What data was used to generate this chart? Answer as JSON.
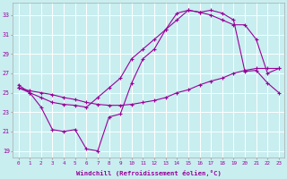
{
  "xlabel": "Windchill (Refroidissement éolien,°C)",
  "background_color": "#c8eef0",
  "grid_color": "#ffffff",
  "line_color": "#990099",
  "xlim": [
    -0.5,
    23.5
  ],
  "ylim": [
    18.3,
    34.3
  ],
  "xticks": [
    0,
    1,
    2,
    3,
    4,
    5,
    6,
    7,
    8,
    9,
    10,
    11,
    12,
    13,
    14,
    15,
    16,
    17,
    18,
    19,
    20,
    21,
    22,
    23
  ],
  "yticks": [
    19,
    21,
    23,
    25,
    27,
    29,
    31,
    33
  ],
  "line1_x": [
    0,
    1,
    2,
    3,
    4,
    5,
    6,
    7,
    8,
    9,
    10,
    11,
    12,
    13,
    14,
    15,
    16,
    17,
    18,
    19,
    20,
    21,
    22,
    23
  ],
  "line1_y": [
    25.8,
    25.0,
    23.5,
    21.2,
    21.0,
    21.2,
    19.2,
    19.0,
    22.5,
    22.8,
    26.0,
    28.5,
    29.5,
    31.5,
    33.2,
    33.5,
    33.3,
    33.0,
    32.5,
    32.0,
    32.0,
    30.5,
    27.0,
    27.5
  ],
  "line2_x": [
    0,
    1,
    2,
    3,
    4,
    5,
    6,
    7,
    8,
    9,
    10,
    11,
    12,
    13,
    14,
    15,
    16,
    17,
    18,
    19,
    20,
    21,
    22,
    23
  ],
  "line2_y": [
    25.5,
    25.0,
    24.5,
    24.0,
    23.8,
    23.7,
    23.5,
    24.5,
    25.5,
    26.5,
    28.5,
    29.5,
    30.5,
    31.5,
    32.5,
    33.5,
    33.3,
    33.5,
    33.2,
    32.5,
    27.2,
    27.3,
    26.0,
    25.0
  ],
  "line3_x": [
    0,
    1,
    2,
    3,
    4,
    5,
    6,
    7,
    8,
    9,
    10,
    11,
    12,
    13,
    14,
    15,
    16,
    17,
    18,
    19,
    20,
    21,
    22,
    23
  ],
  "line3_y": [
    25.5,
    25.2,
    25.0,
    24.8,
    24.5,
    24.3,
    24.0,
    23.8,
    23.7,
    23.7,
    23.8,
    24.0,
    24.2,
    24.5,
    25.0,
    25.3,
    25.8,
    26.2,
    26.5,
    27.0,
    27.3,
    27.5,
    27.5,
    27.5
  ]
}
